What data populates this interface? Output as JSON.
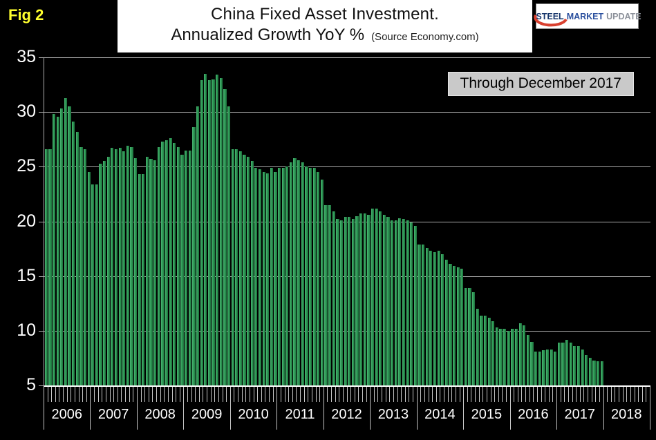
{
  "header": {
    "fig_label": "Fig 2",
    "title_line1": "China Fixed Asset Investment.",
    "title_line2": "Annualized Growth YoY %",
    "source": "(Source Economy.com)"
  },
  "logo": {
    "steel": "STEEL",
    "market": "MARKET",
    "update": "UPDATE",
    "swoosh_color": "#d9402f"
  },
  "chart_data": {
    "type": "bar",
    "title": "China Fixed Asset Investment. Annualized Growth YoY %",
    "source": "Source Economy.com",
    "annotation": "Through December 2017",
    "ylim": [
      5,
      35
    ],
    "yticks": [
      5,
      10,
      15,
      20,
      25,
      30,
      35
    ],
    "x_year_labels": [
      "2006",
      "2007",
      "2008",
      "2009",
      "2010",
      "2011",
      "2012",
      "2013",
      "2014",
      "2015",
      "2016",
      "2017",
      "2018"
    ],
    "bar_color": "#2e9a55",
    "background_color": "#000000",
    "grid": "horizontal",
    "legend": "none",
    "series": [
      {
        "name": "China FAI Annualized Growth YoY %",
        "start": "2006-01",
        "frequency": "monthly",
        "values": [
          26.6,
          26.6,
          29.8,
          29.6,
          30.3,
          31.3,
          30.5,
          29.1,
          28.2,
          26.8,
          26.6,
          24.5,
          23.4,
          23.4,
          25.3,
          25.5,
          25.9,
          26.7,
          26.6,
          26.7,
          26.4,
          26.9,
          26.8,
          25.8,
          24.3,
          24.3,
          25.9,
          25.7,
          25.6,
          26.8,
          27.3,
          27.4,
          27.6,
          27.2,
          26.8,
          26.1,
          26.5,
          26.5,
          28.6,
          30.5,
          32.9,
          33.5,
          32.9,
          33.0,
          33.4,
          33.1,
          32.1,
          30.5,
          26.6,
          26.6,
          26.4,
          26.1,
          25.9,
          25.5,
          24.9,
          24.8,
          24.5,
          24.4,
          24.9,
          24.5,
          24.9,
          24.9,
          25.0,
          25.4,
          25.8,
          25.6,
          25.4,
          25.0,
          24.9,
          24.9,
          24.5,
          23.8,
          21.5,
          21.5,
          20.9,
          20.2,
          20.1,
          20.4,
          20.4,
          20.2,
          20.5,
          20.7,
          20.7,
          20.6,
          21.2,
          21.2,
          20.9,
          20.6,
          20.4,
          20.1,
          20.1,
          20.3,
          20.2,
          20.1,
          19.9,
          19.6,
          17.9,
          17.9,
          17.6,
          17.3,
          17.2,
          17.3,
          17.0,
          16.5,
          16.1,
          15.9,
          15.8,
          15.7,
          13.9,
          13.9,
          13.5,
          12.0,
          11.4,
          11.4,
          11.2,
          10.9,
          10.3,
          10.2,
          10.2,
          10.0,
          10.2,
          10.2,
          10.7,
          10.5,
          9.6,
          9.0,
          8.1,
          8.1,
          8.2,
          8.3,
          8.3,
          8.1,
          8.9,
          8.9,
          9.2,
          8.9,
          8.6,
          8.6,
          8.3,
          7.8,
          7.5,
          7.3,
          7.2,
          7.2
        ]
      }
    ]
  }
}
